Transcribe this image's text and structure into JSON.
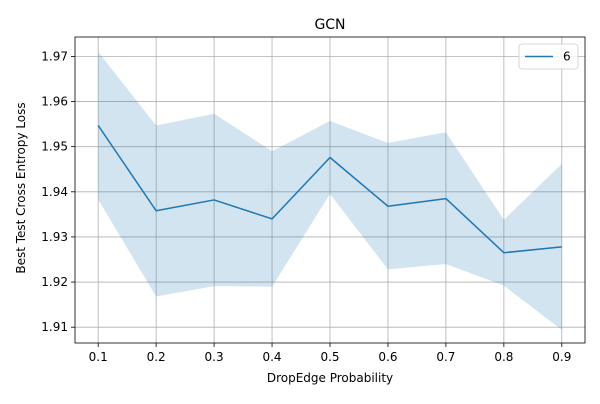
{
  "chart_data": {
    "type": "line",
    "title": "GCN",
    "xlabel": "DropEdge Probability",
    "ylabel": "Best Test Cross Entropy Loss",
    "x": [
      0.1,
      0.2,
      0.3,
      0.4,
      0.5,
      0.6,
      0.7,
      0.8,
      0.9
    ],
    "x_tick_labels": [
      "0.1",
      "0.2",
      "0.3",
      "0.4",
      "0.5",
      "0.6",
      "0.7",
      "0.8",
      "0.9"
    ],
    "y_ticks": [
      1.91,
      1.92,
      1.93,
      1.94,
      1.95,
      1.96,
      1.97
    ],
    "y_tick_labels": [
      "1.91",
      "1.92",
      "1.93",
      "1.94",
      "1.95",
      "1.96",
      "1.97"
    ],
    "xlim": [
      0.06,
      0.94
    ],
    "ylim": [
      1.9065,
      1.9743
    ],
    "grid": true,
    "legend_position": "top-right",
    "series": [
      {
        "name": "6",
        "color": "#1f77b4",
        "band_color": "#1f77b4",
        "values": [
          1.9547,
          1.9358,
          1.9382,
          1.934,
          1.9476,
          1.9368,
          1.9385,
          1.9265,
          1.9278
        ],
        "upper": [
          1.971,
          1.9547,
          1.9573,
          1.949,
          1.9557,
          1.9508,
          1.9532,
          1.9338,
          1.9462
        ],
        "lower": [
          1.9383,
          1.9168,
          1.9191,
          1.919,
          1.9395,
          1.9228,
          1.924,
          1.9192,
          1.9094
        ]
      }
    ]
  }
}
